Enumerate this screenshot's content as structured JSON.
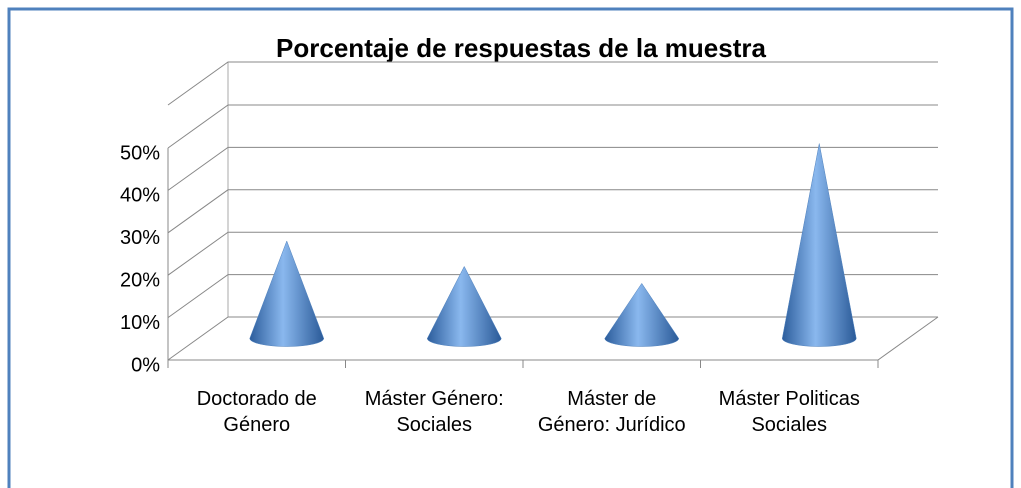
{
  "chart_data": {
    "type": "cone",
    "title": "Porcentaje de respuestas de la muestra",
    "categories": [
      "Doctorado de Género",
      "Máster Género: Sociales",
      "Máster de Género: Jurídico",
      "Máster Politicas Sociales"
    ],
    "values": [
      23,
      17,
      13,
      46
    ],
    "color": "#4f81bd",
    "ylim": [
      0,
      50
    ],
    "yticks": [
      {
        "value": 0,
        "label": "0%"
      },
      {
        "value": 10,
        "label": "10%"
      },
      {
        "value": 20,
        "label": "20%"
      },
      {
        "value": 30,
        "label": "30%"
      },
      {
        "value": 40,
        "label": "40%"
      },
      {
        "value": 50,
        "label": "50%"
      }
    ],
    "grid": true
  }
}
